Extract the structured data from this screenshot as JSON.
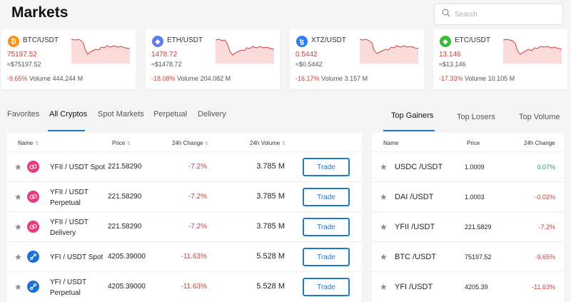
{
  "header": {
    "title": "Markets",
    "search_placeholder": "Search"
  },
  "colors": {
    "negative": "#c8423b",
    "positive": "#2b9a58",
    "accent": "#1f7ac9"
  },
  "tickers": [
    {
      "pair": "BTC/USDT",
      "last": "75197.52",
      "approx": "≈$75197.52",
      "change": "-9.65%",
      "volume": "Volume 444.244 M",
      "icon": "bitcoin-icon",
      "icon_color": "#f7931a",
      "icon_glyph": "₿"
    },
    {
      "pair": "ETH/USDT",
      "last": "1478.72",
      "approx": "≈$1478.72",
      "change": "-18.08%",
      "volume": "Volume 204.082 M",
      "icon": "ethereum-icon",
      "icon_color": "#627eea",
      "icon_glyph": "◆"
    },
    {
      "pair": "XTZ/USDT",
      "last": "0.5442",
      "approx": "≈$0.5442",
      "change": "-16.17%",
      "volume": "Volume 3.157 M",
      "icon": "tezos-icon",
      "icon_color": "#2c7df7",
      "icon_glyph": "ꜩ"
    },
    {
      "pair": "ETC/USDT",
      "last": "13.146",
      "approx": "≈$13.146",
      "change": "-17.33%",
      "volume": "Volume 10.105 M",
      "icon": "ethereum-classic-icon",
      "icon_color": "#3ab83a",
      "icon_glyph": "◆"
    }
  ],
  "market_tabs": [
    "Favorites",
    "All Cryptos",
    "Spot Markets",
    "Perpetual",
    "Delivery"
  ],
  "market_tab_active": "All Cryptos",
  "market_table": {
    "columns": [
      "Name",
      "Price",
      "24h Change",
      "24h Volume"
    ],
    "sort_icon": "⇅",
    "rows": [
      {
        "name_line1": "YFII / USDT Spot",
        "name_line2": "",
        "price": "221.58290",
        "change": "-7.2%",
        "volume": "3.785 M",
        "action": "Trade",
        "icon": "yfii-icon"
      },
      {
        "name_line1": "YFII / USDT",
        "name_line2": "Perpetual",
        "price": "221.58290",
        "change": "-7.2%",
        "volume": "3.785 M",
        "action": "Trade",
        "icon": "yfii-icon"
      },
      {
        "name_line1": "YFII / USDT",
        "name_line2": "Delivery",
        "price": "221.58290",
        "change": "-7.2%",
        "volume": "3.785 M",
        "action": "Trade",
        "icon": "yfii-icon"
      },
      {
        "name_line1": "YFI / USDT Spot",
        "name_line2": "",
        "price": "4205.39000",
        "change": "-11.63%",
        "volume": "5.528 M",
        "action": "Trade",
        "icon": "yfi-icon"
      },
      {
        "name_line1": "YFI / USDT",
        "name_line2": "Perpetual",
        "price": "4205.39000",
        "change": "-11.63%",
        "volume": "5.528 M",
        "action": "Trade",
        "icon": "yfi-icon"
      }
    ]
  },
  "ranking_tabs": [
    "Top Gainers",
    "Top Losers",
    "Top Volume"
  ],
  "ranking_tab_active": "Top Gainers",
  "ranking_table": {
    "columns": [
      "Name",
      "Price",
      "24h Change"
    ],
    "rows": [
      {
        "name": "USDC /USDT",
        "price": "1.0009",
        "change": "0.07%",
        "positive": true
      },
      {
        "name": "DAI /USDT",
        "price": "1.0003",
        "change": "-0.02%",
        "positive": false
      },
      {
        "name": "YFII /USDT",
        "price": "221.5829",
        "change": "-7.2%",
        "positive": false
      },
      {
        "name": "BTC /USDT",
        "price": "75197.52",
        "change": "-9.65%",
        "positive": false
      },
      {
        "name": "YFI /USDT",
        "price": "4205.39",
        "change": "-11.63%",
        "positive": false
      }
    ]
  }
}
